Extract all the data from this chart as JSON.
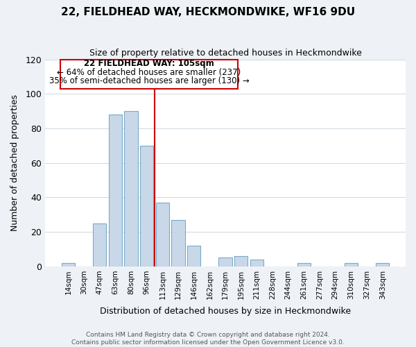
{
  "title": "22, FIELDHEAD WAY, HECKMONDWIKE, WF16 9DU",
  "subtitle": "Size of property relative to detached houses in Heckmondwike",
  "xlabel": "Distribution of detached houses by size in Heckmondwike",
  "ylabel": "Number of detached properties",
  "bar_labels": [
    "14sqm",
    "30sqm",
    "47sqm",
    "63sqm",
    "80sqm",
    "96sqm",
    "113sqm",
    "129sqm",
    "146sqm",
    "162sqm",
    "179sqm",
    "195sqm",
    "211sqm",
    "228sqm",
    "244sqm",
    "261sqm",
    "277sqm",
    "294sqm",
    "310sqm",
    "327sqm",
    "343sqm"
  ],
  "bar_values": [
    2,
    0,
    25,
    88,
    90,
    70,
    37,
    27,
    12,
    0,
    5,
    6,
    4,
    0,
    0,
    2,
    0,
    0,
    2,
    0,
    2
  ],
  "bar_color": "#c8d8e8",
  "bar_edge_color": "#7aaac8",
  "vline_color": "#cc0000",
  "ylim": [
    0,
    120
  ],
  "yticks": [
    0,
    20,
    40,
    60,
    80,
    100,
    120
  ],
  "annotation_line1": "22 FIELDHEAD WAY: 105sqm",
  "annotation_line2": "← 64% of detached houses are smaller (237)",
  "annotation_line3": "35% of semi-detached houses are larger (130) →",
  "footer_text": "Contains HM Land Registry data © Crown copyright and database right 2024.\nContains public sector information licensed under the Open Government Licence v3.0.",
  "background_color": "#eef2f7",
  "plot_bg_color": "#ffffff"
}
